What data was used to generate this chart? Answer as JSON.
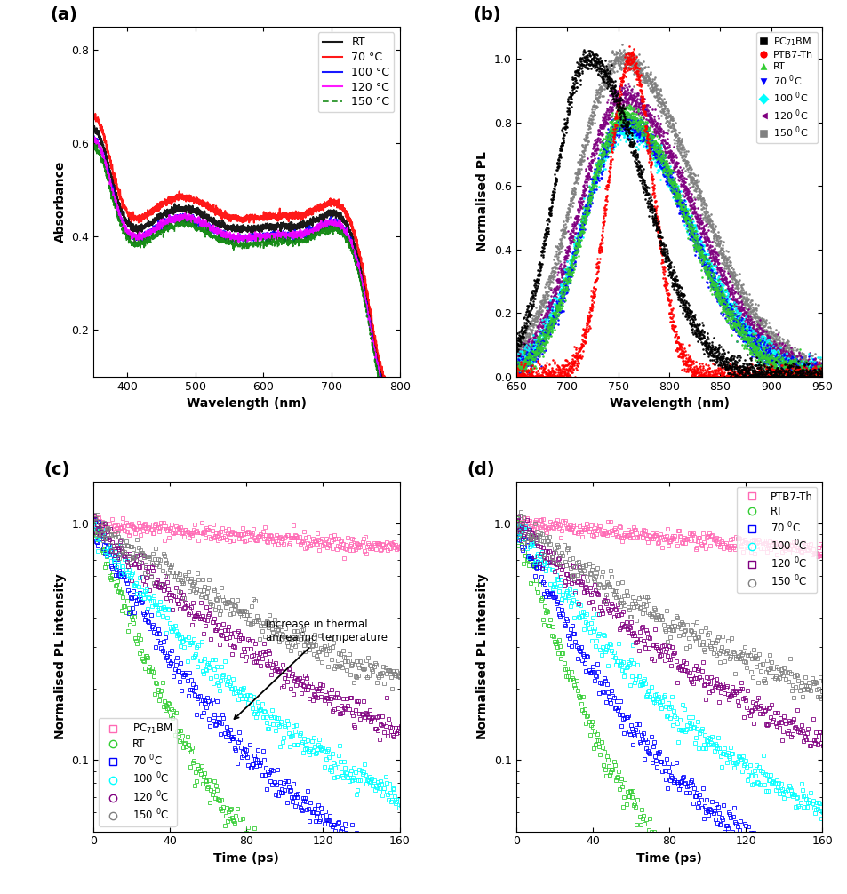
{
  "panel_a": {
    "xlabel": "Wavelength (nm)",
    "ylabel": "Absorbance",
    "xlim": [
      350,
      800
    ],
    "ylim": [
      0.1,
      0.85
    ],
    "yticks": [
      0.2,
      0.4,
      0.6,
      0.8
    ],
    "xticks": [
      400,
      500,
      600,
      700,
      800
    ],
    "legend_labels": [
      "RT",
      "70 °C",
      "100 °C",
      "120 °C",
      "150 °C"
    ],
    "legend_colors": [
      "black",
      "red",
      "blue",
      "magenta",
      "green"
    ]
  },
  "panel_b": {
    "xlabel": "Wavelength (nm)",
    "ylabel": "Normalised PL",
    "xlim": [
      650,
      950
    ],
    "ylim": [
      0,
      1.1
    ],
    "yticks": [
      0,
      0.2,
      0.4,
      0.6,
      0.8,
      1.0
    ],
    "xticks": [
      650,
      700,
      750,
      800,
      850,
      900,
      950
    ]
  },
  "panel_c": {
    "xlabel": "Time (ps)",
    "ylabel": "Normalised PL intensity",
    "xlim": [
      0,
      160
    ],
    "ylim": [
      0.05,
      1.5
    ],
    "xticks": [
      0,
      40,
      80,
      120,
      160
    ]
  },
  "panel_d": {
    "xlabel": "Time (ps)",
    "ylabel": "Normalised PL intensity",
    "xlim": [
      0,
      160
    ],
    "ylim": [
      0.05,
      1.5
    ],
    "xticks": [
      0,
      40,
      80,
      120,
      160
    ]
  }
}
